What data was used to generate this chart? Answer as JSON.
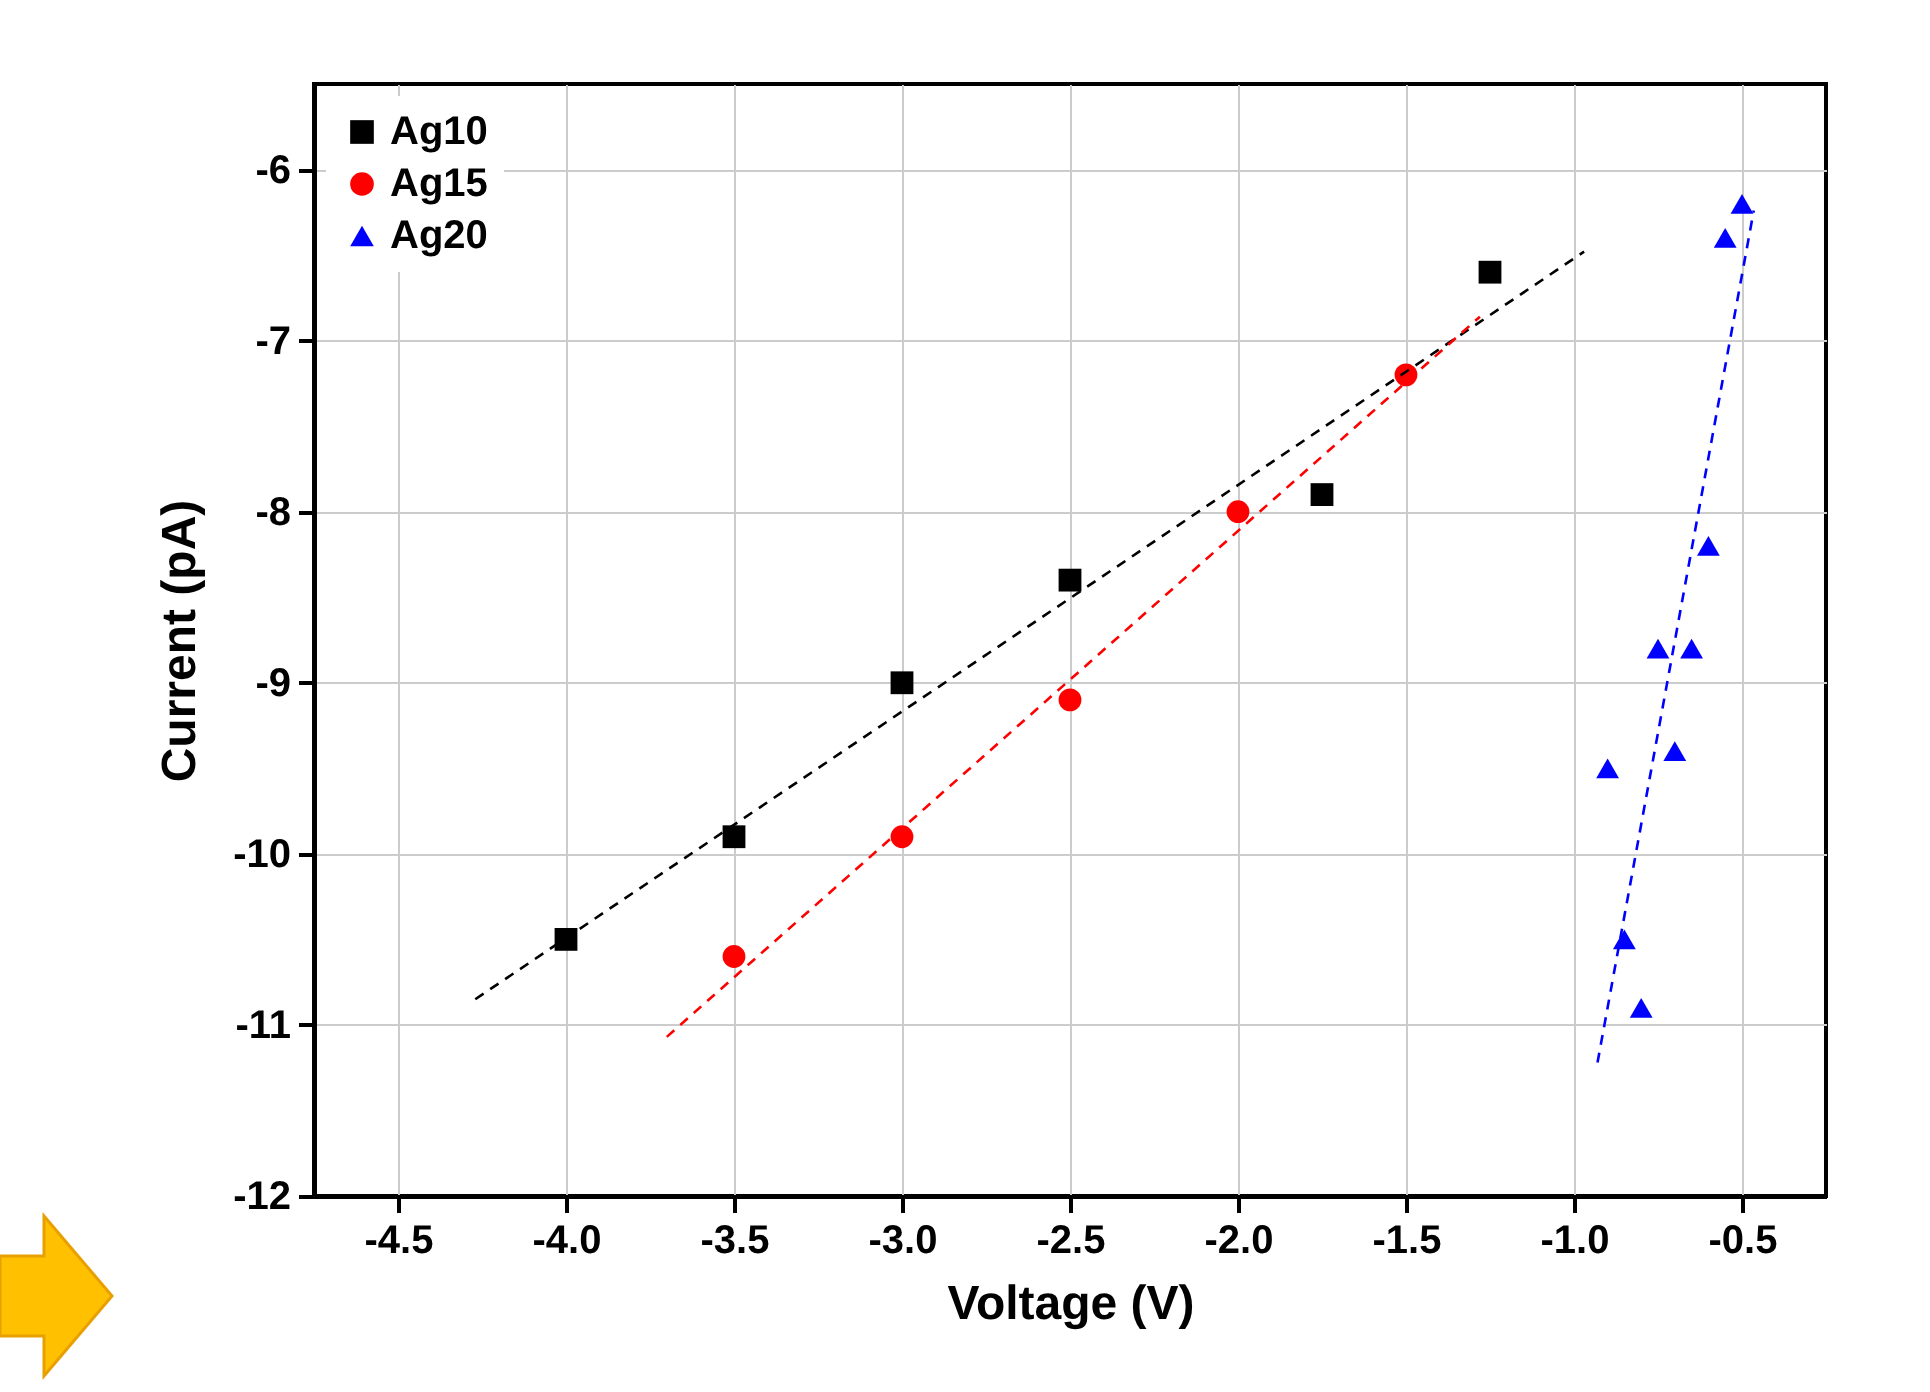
{
  "chart_data": {
    "type": "scatter",
    "xlabel": "Voltage (V)",
    "ylabel": "Current (pA)",
    "xlim": [
      -4.75,
      -0.25
    ],
    "ylim": [
      -12,
      -5.5
    ],
    "xticks": [
      {
        "value": -4.5,
        "label": "-4.5"
      },
      {
        "value": -4,
        "label": "-4.0"
      },
      {
        "value": -3.5,
        "label": "-3.5"
      },
      {
        "value": -3,
        "label": "-3.0"
      },
      {
        "value": -2.5,
        "label": "-2.5"
      },
      {
        "value": -2,
        "label": "-2.0"
      },
      {
        "value": -1.5,
        "label": "-1.5"
      },
      {
        "value": -1,
        "label": "-1.0"
      },
      {
        "value": -0.5,
        "label": "-0.5"
      }
    ],
    "yticks": [
      -12,
      -11,
      -10,
      -9,
      -8,
      -7,
      -6
    ],
    "grid": true,
    "legend": "top left",
    "series": [
      {
        "name": "Ag10",
        "color": "#000000",
        "marker": "square",
        "x": [
          -4,
          -3.5,
          -3,
          -2.5,
          -1.75,
          -1.25
        ],
        "values": [
          -10.5,
          -9.9,
          -9.0,
          -8.4,
          -7.9,
          -6.6
        ]
      },
      {
        "name": "Ag15",
        "color": "#ff0000",
        "marker": "circle",
        "x": [
          -3.5,
          -3,
          -2.5,
          -2,
          -1.5
        ],
        "values": [
          -10.6,
          -9.9,
          -9.1,
          -8.0,
          -7.2
        ]
      },
      {
        "name": "Ag20",
        "color": "#0000ff",
        "marker": "triangle",
        "x": [
          -0.9,
          -0.85,
          -0.8,
          -0.75,
          -0.7,
          -0.65,
          -0.6,
          -0.55,
          -0.5
        ],
        "values": [
          -9.5,
          -10.5,
          -10.9,
          -8.8,
          -9.4,
          -8.8,
          -8.2,
          -6.4,
          -6.2
        ]
      },
      {
        "type": "line",
        "color": "#000000",
        "line_style": "dashed",
        "marker": "none",
        "x": [
          -4.27,
          -0.97
        ],
        "values": [
          -10.85,
          -6.48
        ]
      },
      {
        "type": "line",
        "color": "#ff0000",
        "line_style": "dashed",
        "marker": "none",
        "x": [
          -3.7,
          -1.28
        ],
        "values": [
          -11.07,
          -6.86
        ]
      },
      {
        "type": "line",
        "color": "#0000ff",
        "line_style": "dashed",
        "marker": "none",
        "x": [
          -0.93,
          -0.465
        ],
        "values": [
          -11.22,
          -6.24
        ]
      }
    ]
  }
}
